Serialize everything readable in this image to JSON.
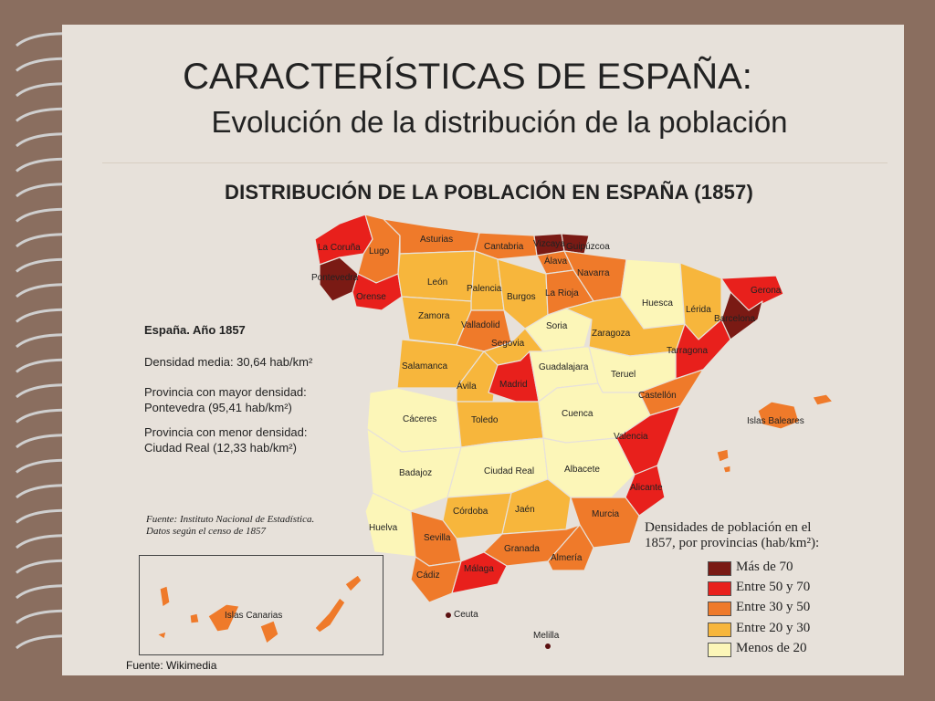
{
  "slide": {
    "title": "CARACTERÍSTICAS DE ESPAÑA:",
    "subtitle": "Evolución de la distribución de la población",
    "source_bottom": "Fuente: Wikimedia"
  },
  "map": {
    "title": "DISTRIBUCIÓN DE LA POBLACIÓN EN ESPAÑA (1857)",
    "info": {
      "heading": "España. Año 1857",
      "density_line": "Densidad media: 30,64 hab/km²",
      "max_label": "Provincia con mayor densidad:",
      "max_value": "Pontevedra (95,41 hab/km²)",
      "min_label": "Provincia con menor densidad:",
      "min_value": "Ciudad Real (12,33 hab/km²)"
    },
    "source_line1": "Fuente: Instituto Nacional de Estadística.",
    "source_line2": "Datos según el censo de 1857",
    "legend": {
      "title_line1": "Densidades de población en el",
      "title_line2": "1857, por provincias (hab/km²):",
      "items": [
        {
          "label": "Más de 70",
          "color": "#7a1a14"
        },
        {
          "label": "Entre 50 y 70",
          "color": "#e8201c"
        },
        {
          "label": "Entre 30 y 50",
          "color": "#ef7a2a"
        },
        {
          "label": "Entre 20 y 30",
          "color": "#f7b63c"
        },
        {
          "label": "Menos de 20",
          "color": "#fcf6b8"
        }
      ]
    },
    "labels": {
      "la_coruna": "La Coruña",
      "lugo": "Lugo",
      "pontevedra": "Pontevedra",
      "orense": "Orense",
      "asturias": "Asturias",
      "cantabria": "Cantabria",
      "vizcaya": "Vizcaya",
      "guipuzcoa": "Guipúzcoa",
      "alava": "Álava",
      "navarra": "Navarra",
      "leon": "León",
      "palencia": "Palencia",
      "burgos": "Burgos",
      "la_rioja": "La Rioja",
      "huesca": "Huesca",
      "lerida": "Lérida",
      "gerona": "Gerona",
      "barcelona": "Barcelona",
      "zamora": "Zamora",
      "valladolid": "Valladolid",
      "soria": "Soria",
      "zaragoza": "Zaragoza",
      "tarragona": "Tarragona",
      "segovia": "Segovia",
      "salamanca": "Salamanca",
      "avila": "Ávila",
      "madrid": "Madrid",
      "guadalajara": "Guadalajara",
      "teruel": "Teruel",
      "castellon": "Castellón",
      "caceres": "Cáceres",
      "toledo": "Toledo",
      "cuenca": "Cuenca",
      "valencia": "Valencia",
      "baleares": "Islas Baleares",
      "badajoz": "Badajoz",
      "ciudad_real": "Ciudad Real",
      "albacete": "Albacete",
      "alicante": "Alicante",
      "cordoba": "Córdoba",
      "jaen": "Jaén",
      "murcia": "Murcia",
      "huelva": "Huelva",
      "sevilla": "Sevilla",
      "granada": "Granada",
      "almeria": "Almería",
      "cadiz": "Cádiz",
      "malaga": "Málaga",
      "ceuta": "Ceuta",
      "melilla": "Melilla",
      "canarias": "Islas Canarias"
    },
    "province_density_class": {
      "La Coruña": "Entre 50 y 70",
      "Lugo": "Entre 30 y 50",
      "Pontevedra": "Más de 70",
      "Orense": "Entre 50 y 70",
      "Asturias": "Entre 30 y 50",
      "Cantabria": "Entre 30 y 50",
      "Vizcaya": "Más de 70",
      "Guipúzcoa": "Más de 70",
      "Álava": "Entre 30 y 50",
      "Navarra": "Entre 30 y 50",
      "León": "Entre 20 y 30",
      "Palencia": "Entre 20 y 30",
      "Burgos": "Entre 20 y 30",
      "La Rioja": "Entre 30 y 50",
      "Huesca": "Menos de 20",
      "Lérida": "Entre 20 y 30",
      "Gerona": "Entre 50 y 70",
      "Barcelona": "Más de 70",
      "Zamora": "Entre 20 y 30",
      "Valladolid": "Entre 30 y 50",
      "Soria": "Menos de 20",
      "Zaragoza": "Entre 20 y 30",
      "Tarragona": "Entre 50 y 70",
      "Segovia": "Entre 20 y 30",
      "Salamanca": "Entre 20 y 30",
      "Ávila": "Entre 20 y 30",
      "Madrid": "Entre 50 y 70",
      "Guadalajara": "Menos de 20",
      "Teruel": "Menos de 20",
      "Castellón": "Entre 30 y 50",
      "Cáceres": "Menos de 20",
      "Toledo": "Entre 20 y 30",
      "Cuenca": "Menos de 20",
      "Valencia": "Entre 50 y 70",
      "Islas Baleares": "Entre 30 y 50",
      "Badajoz": "Menos de 20",
      "Ciudad Real": "Menos de 20",
      "Albacete": "Menos de 20",
      "Alicante": "Entre 50 y 70",
      "Córdoba": "Entre 20 y 30",
      "Jaén": "Entre 20 y 30",
      "Murcia": "Entre 30 y 50",
      "Huelva": "Menos de 20",
      "Sevilla": "Entre 30 y 50",
      "Granada": "Entre 30 y 50",
      "Almería": "Entre 30 y 50",
      "Cádiz": "Entre 30 y 50",
      "Málaga": "Entre 50 y 70",
      "Islas Canarias": "Entre 30 y 50"
    }
  }
}
